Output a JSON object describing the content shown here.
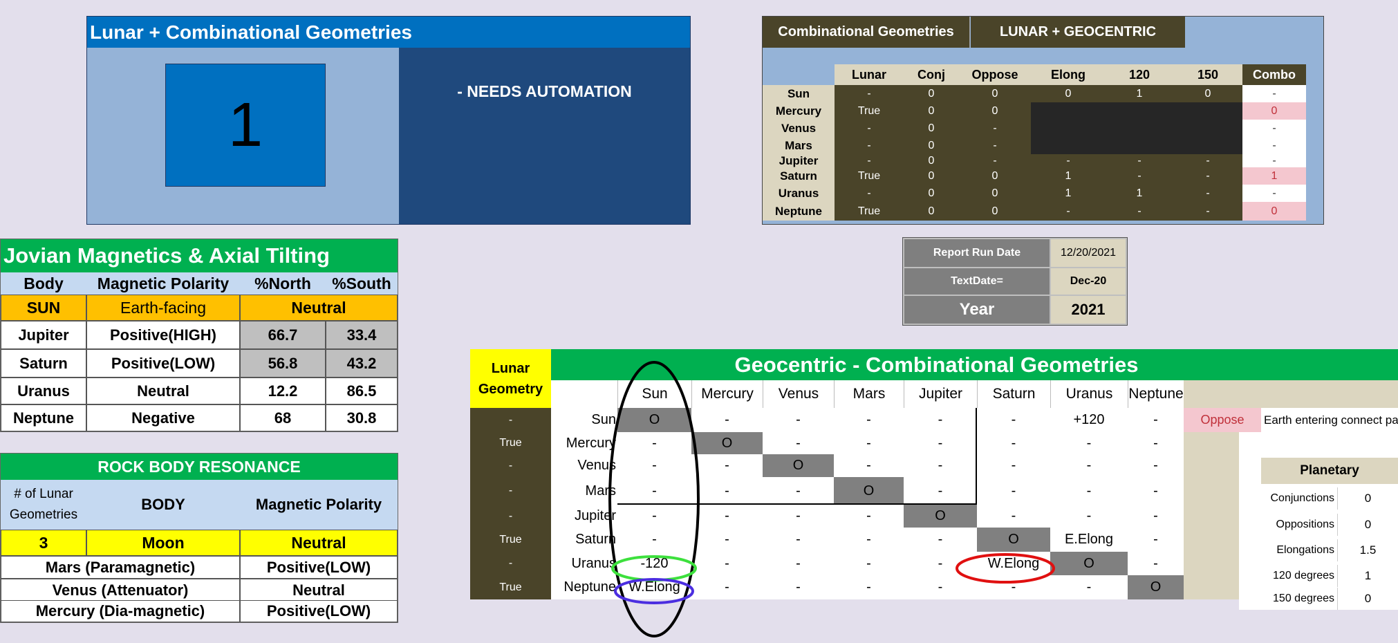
{
  "panel_lunar": {
    "title": "Lunar +  Combinational Geometries",
    "count": "1",
    "note": "- NEEDS AUTOMATION"
  },
  "combo_table": {
    "title_left": "Combinational Geometries",
    "title_right": "LUNAR + GEOCENTRIC",
    "headers": [
      "Lunar",
      "Conj",
      "Oppose",
      "Elong",
      "120",
      "150",
      "Combo"
    ],
    "rows": [
      {
        "name": "Sun",
        "cells": [
          "-",
          "0",
          "0",
          "0",
          "1",
          "0"
        ],
        "combo": "-"
      },
      {
        "name": "Mercury",
        "cells": [
          "True",
          "0",
          "0",
          "",
          "",
          ""
        ],
        "combo": "0"
      },
      {
        "name": "Venus",
        "cells": [
          "-",
          "0",
          "-",
          "",
          "",
          ""
        ],
        "combo": "-"
      },
      {
        "name": "Mars",
        "cells": [
          "-",
          "0",
          "-",
          "",
          "",
          ""
        ],
        "combo": "-"
      },
      {
        "name": "Jupiter",
        "cells": [
          "-",
          "0",
          "-",
          "-",
          "-",
          "-"
        ],
        "combo": "-"
      },
      {
        "name": "Saturn",
        "cells": [
          "True",
          "0",
          "0",
          "1",
          "-",
          "-"
        ],
        "combo": "1"
      },
      {
        "name": "Uranus",
        "cells": [
          "-",
          "0",
          "0",
          "1",
          "1",
          "-"
        ],
        "combo": "-"
      },
      {
        "name": "Neptune",
        "cells": [
          "True",
          "0",
          "0",
          "-",
          "-",
          "-"
        ],
        "combo": "0"
      }
    ]
  },
  "report": {
    "run_date_label": "Report Run Date",
    "run_date_value": "12/20/2021",
    "textdate_label": "TextDate=",
    "textdate_value": "Dec-20",
    "year_label": "Year",
    "year_value": "2021"
  },
  "jovian": {
    "title": "Jovian Magnetics & Axial Tilting",
    "headers": [
      "Body",
      "Magnetic Polarity",
      "%North",
      "%South"
    ],
    "sun": {
      "body": "SUN",
      "polarity": "Earth-facing",
      "value": "Neutral"
    },
    "rows": [
      {
        "body": "Jupiter",
        "polarity": "Positive(HIGH)",
        "north": "66.7",
        "south": "33.4"
      },
      {
        "body": "Saturn",
        "polarity": "Positive(LOW)",
        "north": "56.8",
        "south": "43.2"
      },
      {
        "body": "Uranus",
        "polarity": "Neutral",
        "north": "12.2",
        "south": "86.5"
      },
      {
        "body": "Neptune",
        "polarity": "Negative",
        "north": "68",
        "south": "30.8"
      }
    ]
  },
  "rock": {
    "title": "ROCK BODY RESONANCE",
    "headers": [
      "# of Lunar Geometries",
      "BODY",
      "Magnetic Polarity"
    ],
    "moon": {
      "count": "3",
      "body": "Moon",
      "polarity": "Neutral"
    },
    "rows": [
      {
        "body": "Mars (Paramagnetic)",
        "polarity": "Positive(LOW)"
      },
      {
        "body": "Venus (Attenuator)",
        "polarity": "Neutral"
      },
      {
        "body": "Mercury (Dia-magnetic)",
        "polarity": "Positive(LOW)"
      }
    ]
  },
  "geo": {
    "lunar_label": "Lunar Geometry",
    "title": "Geocentric - Combinational Geometries",
    "cols": [
      "Sun",
      "Mercury",
      "Venus",
      "Mars",
      "Jupiter",
      "Saturn",
      "Uranus",
      "Neptune"
    ],
    "rows": [
      {
        "lunar": "-",
        "name": "Sun",
        "cells": [
          "O",
          "-",
          "-",
          "-",
          "-",
          "-",
          "+120",
          "-"
        ]
      },
      {
        "lunar": "True",
        "name": "Mercury",
        "cells": [
          "-",
          "O",
          "-",
          "-",
          "-",
          "-",
          "-",
          "-"
        ]
      },
      {
        "lunar": "-",
        "name": "Venus",
        "cells": [
          "-",
          "-",
          "O",
          "-",
          "-",
          "-",
          "-",
          "-"
        ]
      },
      {
        "lunar": "-",
        "name": "Mars",
        "cells": [
          "-",
          "-",
          "-",
          "O",
          "-",
          "-",
          "-",
          "-"
        ]
      },
      {
        "lunar": "-",
        "name": "Jupiter",
        "cells": [
          "-",
          "-",
          "-",
          "-",
          "O",
          "-",
          "-",
          "-"
        ]
      },
      {
        "lunar": "True",
        "name": "Saturn",
        "cells": [
          "-",
          "-",
          "-",
          "-",
          "-",
          "O",
          "E.Elong",
          "-"
        ]
      },
      {
        "lunar": "-",
        "name": "Uranus",
        "cells": [
          "-120",
          "-",
          "-",
          "-",
          "-",
          "W.Elong",
          "O",
          "-"
        ]
      },
      {
        "lunar": "True",
        "name": "Neptune",
        "cells": [
          "W.Elong",
          "-",
          "-",
          "-",
          "-",
          "-",
          "-",
          "O"
        ]
      }
    ],
    "oppose_label": "Oppose",
    "side_note": "Earth entering connect pa",
    "planetary": {
      "title": "Planetary",
      "rows": [
        {
          "label": "Conjunctions",
          "value": "0"
        },
        {
          "label": "Oppositions",
          "value": "0"
        },
        {
          "label": "Elongations",
          "value": "1.5"
        },
        {
          "label": "120 degrees",
          "value": "1"
        },
        {
          "label": "150 degrees",
          "value": "0"
        }
      ]
    }
  }
}
